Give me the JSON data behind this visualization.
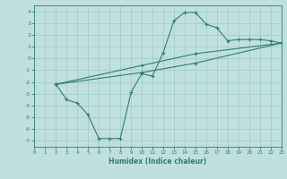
{
  "line1_x": [
    2,
    3,
    4,
    5,
    6,
    7,
    8,
    9,
    10,
    11,
    12,
    13,
    14,
    15,
    16,
    17,
    18,
    19,
    20,
    21,
    22,
    23
  ],
  "line1_y": [
    -2.2,
    -3.5,
    -3.8,
    -4.8,
    -6.8,
    -6.8,
    -6.8,
    -2.9,
    -1.3,
    -1.5,
    0.5,
    3.2,
    3.9,
    3.9,
    2.9,
    2.6,
    1.5,
    1.6,
    1.6,
    1.6,
    1.5,
    1.3
  ],
  "line2_x": [
    2,
    10,
    15,
    23
  ],
  "line2_y": [
    -2.2,
    -1.2,
    -0.4,
    1.3
  ],
  "line3_x": [
    2,
    10,
    15,
    23
  ],
  "line3_y": [
    -2.2,
    -0.6,
    0.4,
    1.3
  ],
  "color": "#2d7d72",
  "bg_color": "#c0e0e0",
  "grid_color": "#9ec8c8",
  "xlabel": "Humidex (Indice chaleur)",
  "xlim": [
    0,
    23
  ],
  "ylim": [
    -7.5,
    4.5
  ],
  "xticks": [
    0,
    1,
    2,
    3,
    4,
    5,
    6,
    7,
    8,
    9,
    10,
    11,
    12,
    13,
    14,
    15,
    16,
    17,
    18,
    19,
    20,
    21,
    22,
    23
  ],
  "yticks": [
    -7,
    -6,
    -5,
    -4,
    -3,
    -2,
    -1,
    0,
    1,
    2,
    3,
    4
  ]
}
